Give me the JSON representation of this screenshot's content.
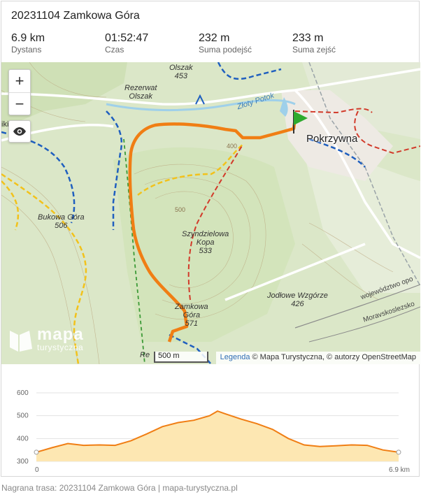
{
  "header": {
    "title": "20231104 Zamkowa Góra"
  },
  "stats": [
    {
      "value": "6.9 km",
      "label": "Dystans"
    },
    {
      "value": "01:52:47",
      "label": "Czas"
    },
    {
      "value": "232 m",
      "label": "Suma podejść"
    },
    {
      "value": "233 m",
      "label": "Suma zejść"
    }
  ],
  "map": {
    "zoom_in": "+",
    "zoom_out": "−",
    "labels": {
      "olszak": "Olszak",
      "olszak_height": "453",
      "rezerwat": "Rezerwat",
      "rezerwat_name": "Olszak",
      "zloty_potok": "Złoty Potok",
      "town": "Pokrzywna",
      "bukowa": "Bukowa Góra",
      "bukowa_height": "506",
      "szyndzielowa1": "Szyndzielowa",
      "szyndzielowa2": "Kopa",
      "szyndzielowa_height": "533",
      "zamkowa1": "Zamkowa",
      "zamkowa2": "Góra",
      "zamkowa_height": "571",
      "jodlowe": "Jodłowe Wzgórze",
      "jodlowe_height": "426",
      "wojewodztwo": "województwo opo",
      "moravskoslezsko": "Moravskoslezsko",
      "kiki": "iki",
      "contour_400": "400",
      "contour_500": "500",
      "rez_bottom": "Re"
    },
    "logo_line1": "mapa",
    "logo_line2": "turystyczna",
    "scale": "500 m",
    "attribution_link": "Legenda",
    "attribution_text": " © Mapa Turystyczna, © autorzy OpenStreetMap"
  },
  "chart_data": {
    "type": "area",
    "x": [
      0,
      0.3,
      0.6,
      0.9,
      1.2,
      1.5,
      1.8,
      2.1,
      2.4,
      2.7,
      3.0,
      3.3,
      3.45,
      3.6,
      3.9,
      4.2,
      4.5,
      4.8,
      5.1,
      5.4,
      5.7,
      6.0,
      6.3,
      6.6,
      6.9
    ],
    "y": [
      340,
      360,
      378,
      370,
      372,
      370,
      390,
      420,
      452,
      470,
      480,
      500,
      520,
      508,
      485,
      465,
      440,
      400,
      372,
      365,
      368,
      372,
      370,
      350,
      340
    ],
    "xlabel": "",
    "ylabel": "",
    "x_ticks": [
      "0",
      "6.9 km"
    ],
    "y_ticks": [
      300,
      400,
      500,
      600
    ],
    "ylim": [
      300,
      600
    ],
    "xlim": [
      0,
      6.9
    ],
    "grid": true,
    "line_color": "#f07e14",
    "fill_color": "#fde7b2"
  },
  "footer": {
    "text": "Nagrana trasa: 20231104 Zamkowa Góra | mapa-turystyczna.pl"
  },
  "colors": {
    "route": "#f07e14",
    "trail_yellow": "#f2c21b",
    "trail_blue": "#1f5fbf",
    "trail_red": "#d23a2a",
    "trail_green": "#3c9a37",
    "map_bg": "#dfe9cf"
  }
}
